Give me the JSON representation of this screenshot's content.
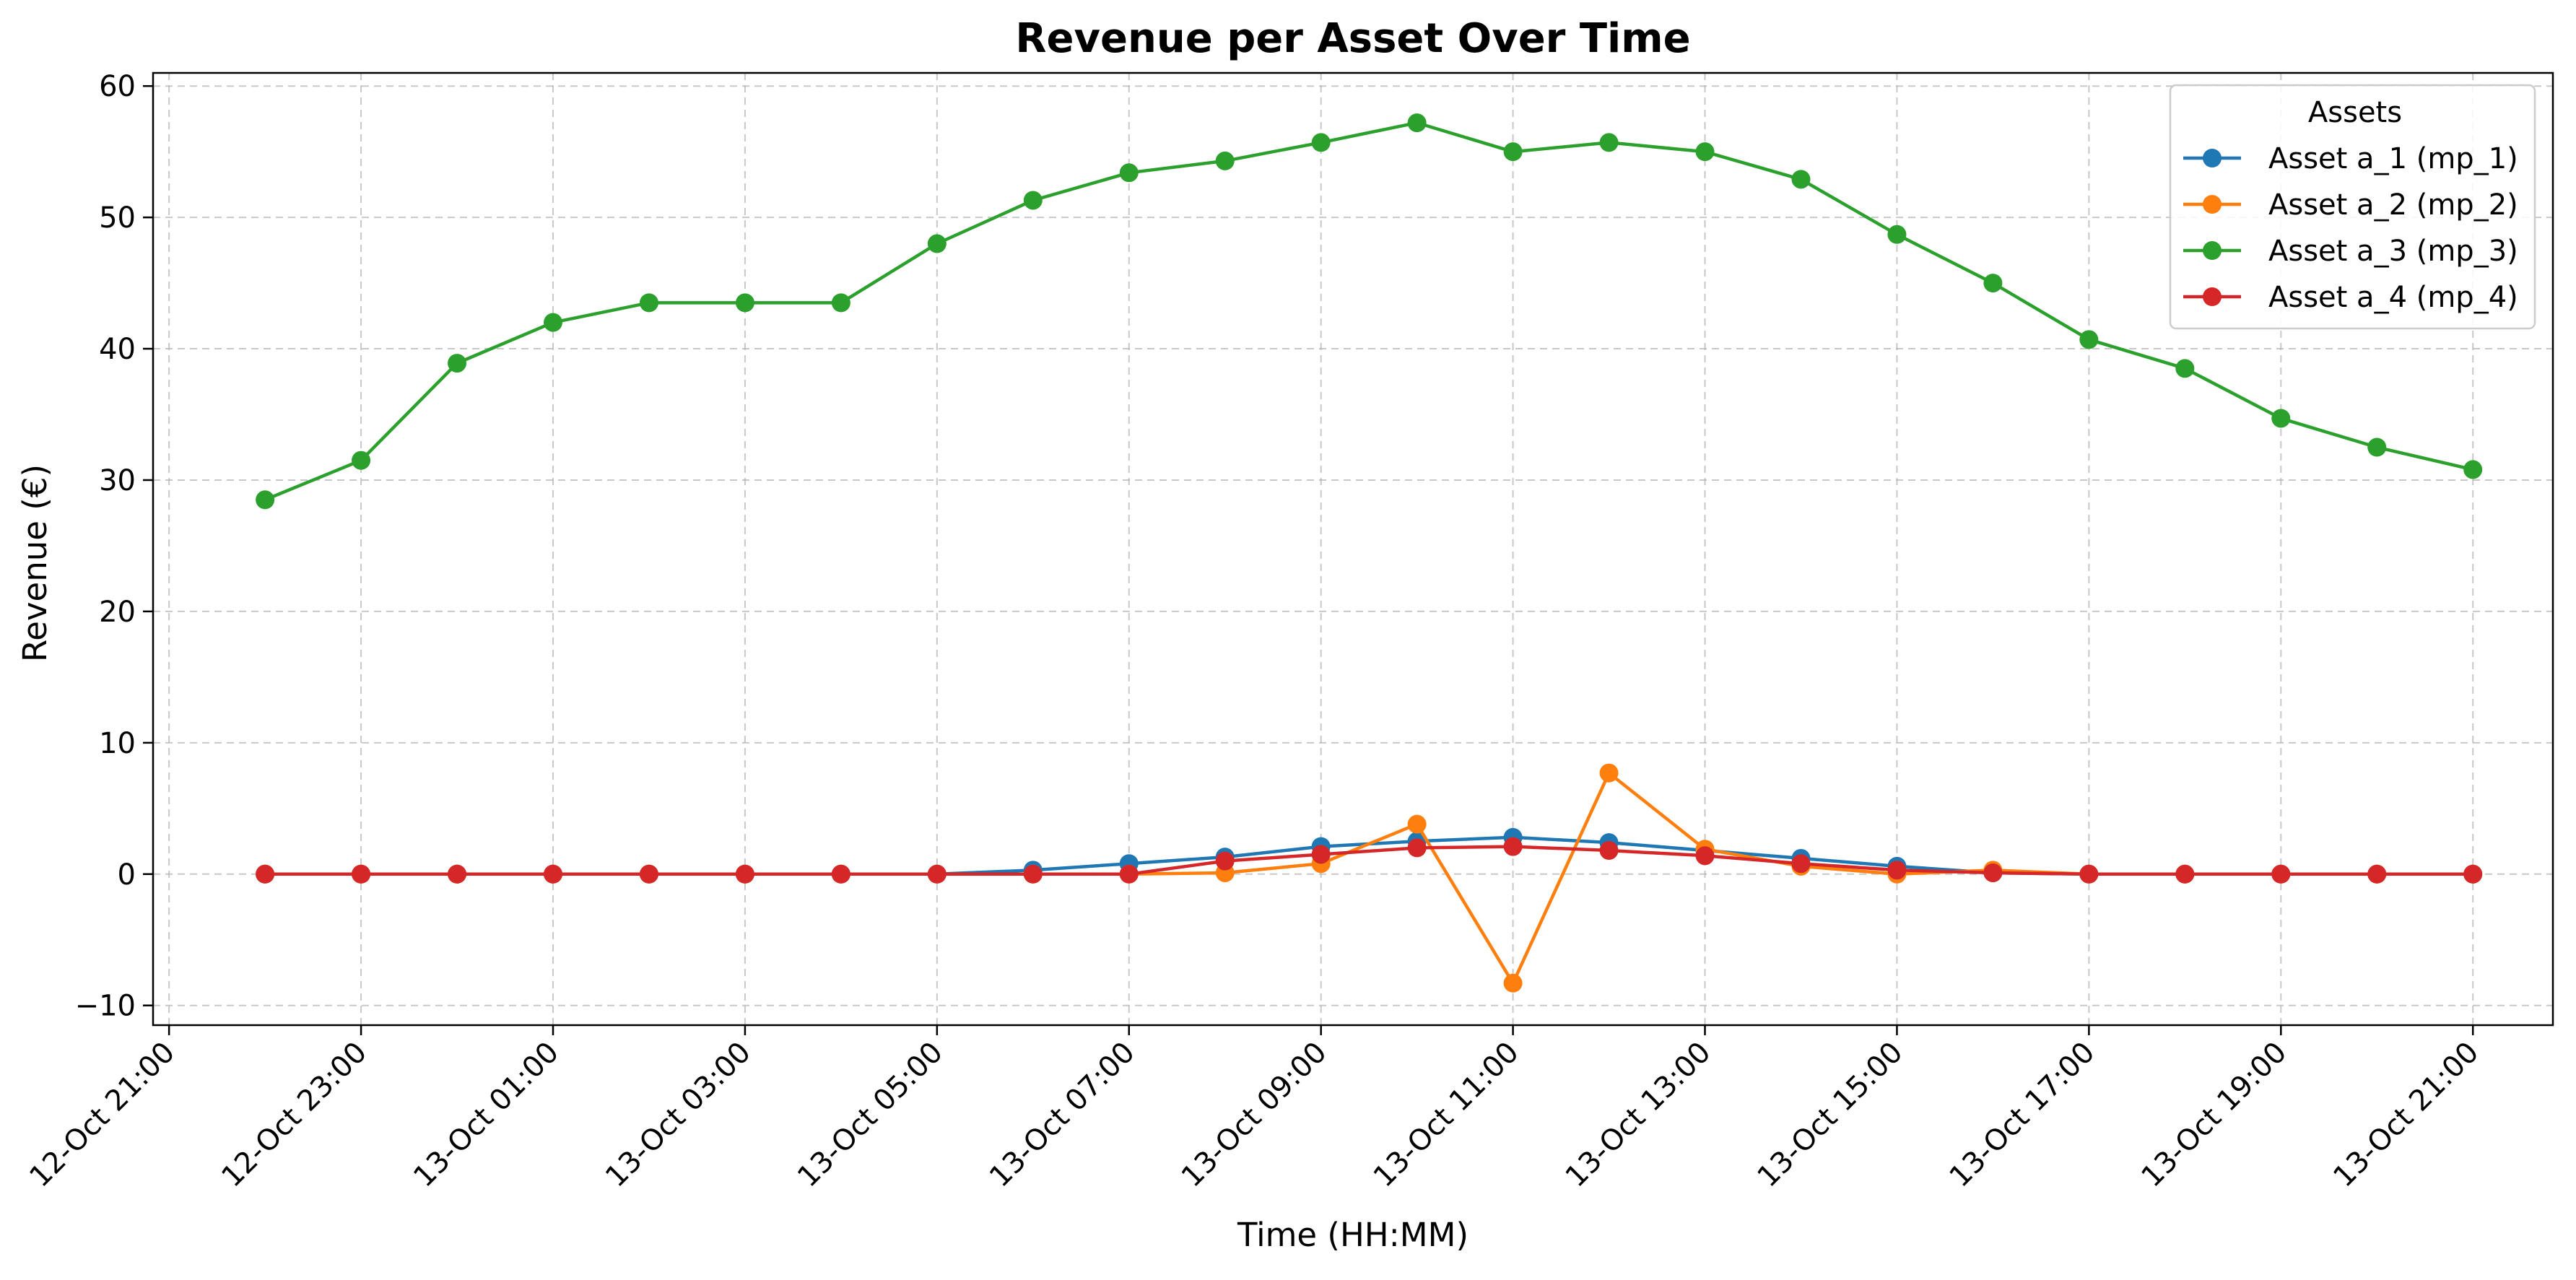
{
  "chart_data": {
    "type": "line",
    "title": "Revenue per Asset Over Time",
    "xlabel": "Time (HH:MM)",
    "ylabel": "Revenue (€)",
    "ylim": [
      -11.5,
      61
    ],
    "xlim": [
      "2025-10-12T20:50",
      "2025-10-13T21:50"
    ],
    "grid": true,
    "legend": {
      "title": "Assets",
      "position": "top-right"
    },
    "xticks": [
      {
        "t": "2025-10-12T21:00",
        "label": "12-Oct 21:00"
      },
      {
        "t": "2025-10-12T23:00",
        "label": "12-Oct 23:00"
      },
      {
        "t": "2025-10-13T01:00",
        "label": "13-Oct 01:00"
      },
      {
        "t": "2025-10-13T03:00",
        "label": "13-Oct 03:00"
      },
      {
        "t": "2025-10-13T05:00",
        "label": "13-Oct 05:00"
      },
      {
        "t": "2025-10-13T07:00",
        "label": "13-Oct 07:00"
      },
      {
        "t": "2025-10-13T09:00",
        "label": "13-Oct 09:00"
      },
      {
        "t": "2025-10-13T11:00",
        "label": "13-Oct 11:00"
      },
      {
        "t": "2025-10-13T13:00",
        "label": "13-Oct 13:00"
      },
      {
        "t": "2025-10-13T15:00",
        "label": "13-Oct 15:00"
      },
      {
        "t": "2025-10-13T17:00",
        "label": "13-Oct 17:00"
      },
      {
        "t": "2025-10-13T19:00",
        "label": "13-Oct 19:00"
      },
      {
        "t": "2025-10-13T21:00",
        "label": "13-Oct 21:00"
      }
    ],
    "yticks": [
      -10,
      0,
      10,
      20,
      30,
      40,
      50,
      60
    ],
    "x": [
      "2025-10-12T22:00",
      "2025-10-12T23:00",
      "2025-10-13T00:00",
      "2025-10-13T01:00",
      "2025-10-13T02:00",
      "2025-10-13T03:00",
      "2025-10-13T04:00",
      "2025-10-13T05:00",
      "2025-10-13T06:00",
      "2025-10-13T07:00",
      "2025-10-13T08:00",
      "2025-10-13T09:00",
      "2025-10-13T10:00",
      "2025-10-13T11:00",
      "2025-10-13T12:00",
      "2025-10-13T13:00",
      "2025-10-13T14:00",
      "2025-10-13T15:00",
      "2025-10-13T16:00",
      "2025-10-13T17:00",
      "2025-10-13T18:00",
      "2025-10-13T19:00",
      "2025-10-13T20:00",
      "2025-10-13T21:00"
    ],
    "series": [
      {
        "name": "Asset a_1 (mp_1)",
        "color": "#1f77b4",
        "values": [
          0,
          0,
          0,
          0,
          0,
          0,
          0,
          0,
          0.3,
          0.8,
          1.3,
          2.1,
          2.5,
          2.8,
          2.4,
          1.8,
          1.2,
          0.6,
          0.1,
          0,
          0,
          0,
          0,
          0
        ]
      },
      {
        "name": "Asset a_2 (mp_2)",
        "color": "#ff7f0e",
        "values": [
          0,
          0,
          0,
          0,
          0,
          0,
          0,
          0,
          0,
          0,
          0.1,
          0.8,
          3.8,
          -8.3,
          7.7,
          1.9,
          0.6,
          0.0,
          0.3,
          0,
          0,
          0,
          0,
          0
        ]
      },
      {
        "name": "Asset a_3 (mp_3)",
        "color": "#2ca02c",
        "values": [
          28.5,
          31.5,
          38.9,
          42.0,
          43.5,
          43.5,
          43.5,
          48.0,
          51.3,
          53.4,
          54.3,
          55.7,
          57.2,
          55.0,
          55.7,
          55.0,
          52.9,
          48.7,
          45.0,
          40.7,
          38.5,
          34.7,
          32.5,
          30.8
        ]
      },
      {
        "name": "Asset a_4 (mp_4)",
        "color": "#d62728",
        "values": [
          0,
          0,
          0,
          0,
          0,
          0,
          0,
          0,
          0,
          0,
          1.0,
          1.5,
          2.0,
          2.1,
          1.8,
          1.4,
          0.8,
          0.3,
          0.1,
          0,
          0,
          0,
          0,
          0
        ]
      }
    ]
  }
}
